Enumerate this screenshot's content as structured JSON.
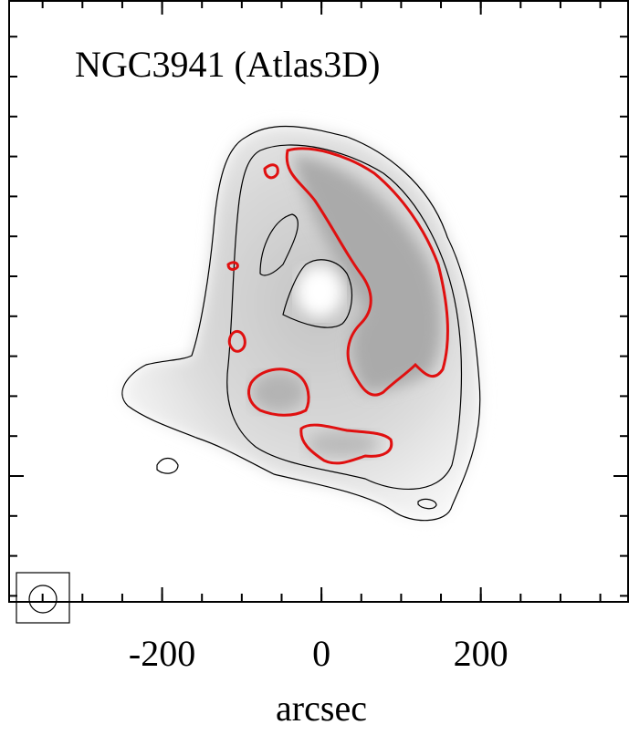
{
  "chart_data": {
    "type": "image",
    "title": "NGC3941 (Atlas3D)",
    "xlabel": "arcsec",
    "xlim": [
      -392,
      386
    ],
    "xticks": [
      -200,
      0,
      200
    ]
  }
}
